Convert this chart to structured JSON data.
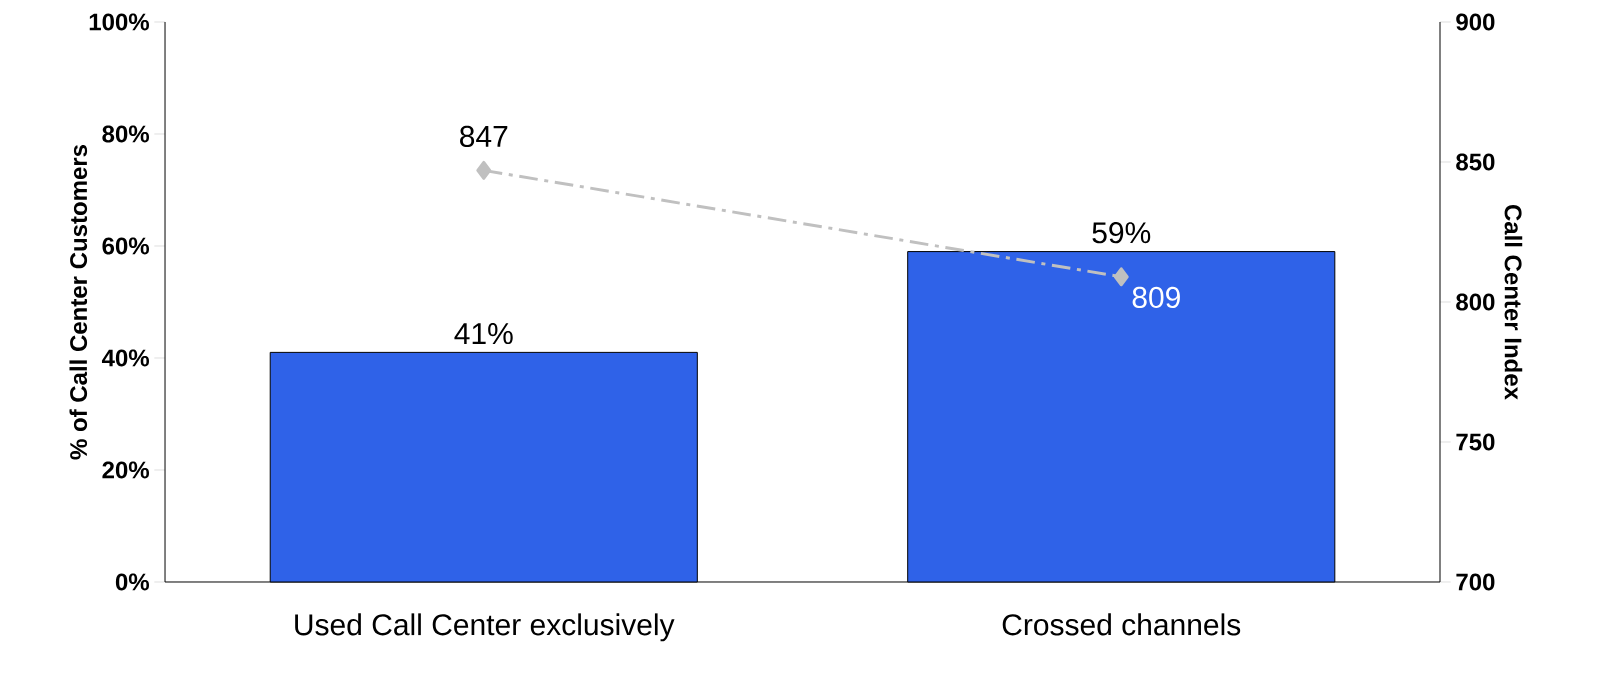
{
  "chart_data": {
    "type": "bar",
    "categories": [
      "Used Call Center exclusively",
      "Crossed channels"
    ],
    "series": [
      {
        "color": "#2f62e8",
        "values": [
          41,
          59
        ],
        "value_labels": [
          "41%",
          "59%"
        ]
      },
      {
        "type": "line",
        "axis": "y2",
        "color": "#c0c0c0",
        "values": [
          847,
          809
        ],
        "value_labels": [
          "847",
          "809"
        ],
        "marker": "diamond",
        "line_style": "dashed"
      }
    ],
    "ylim": [
      0,
      100
    ],
    "yticks": [
      {
        "value": 0,
        "label": "0%"
      },
      {
        "value": 20,
        "label": "20%"
      },
      {
        "value": 40,
        "label": "40%"
      },
      {
        "value": 60,
        "label": "60%"
      },
      {
        "value": 80,
        "label": "80%"
      },
      {
        "value": 100,
        "label": "100%"
      }
    ],
    "y2lim": [
      700,
      900
    ],
    "y2ticks": [
      700,
      750,
      800,
      850,
      900
    ],
    "ylabel": "% of Call Center Customers",
    "y2label": "Call Center Index"
  }
}
